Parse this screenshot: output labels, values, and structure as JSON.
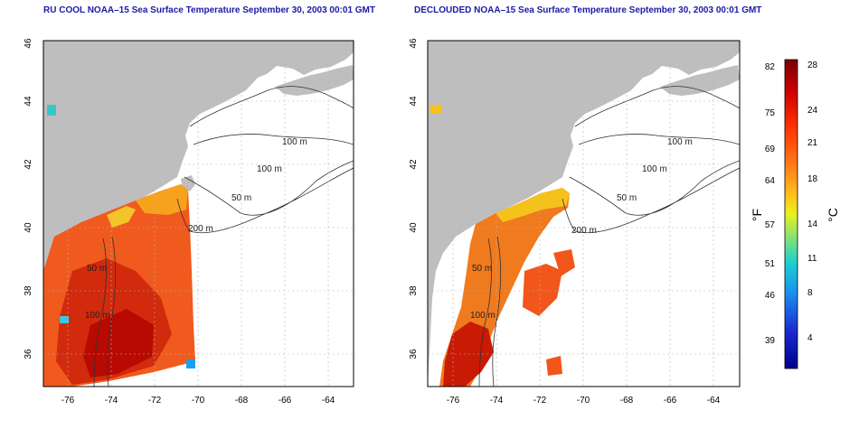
{
  "titles": {
    "left": "RU COOL NOAA–15 Sea Surface Temperature September 30, 2003 00:01 GMT",
    "right": "DECLOUDED NOAA–15 Sea Surface Temperature September 30, 2003 00:01 GMT"
  },
  "map": {
    "lon_ticks": [
      "-76",
      "-74",
      "-72",
      "-70",
      "-68",
      "-66",
      "-64"
    ],
    "lat_ticks": [
      "36",
      "38",
      "40",
      "42",
      "44",
      "46"
    ],
    "contours": {
      "c100a": "100 m",
      "c100b": "100 m",
      "c50": "50 m",
      "c200": "200 m",
      "c50b": "50 m",
      "c100c": "100 m"
    },
    "colors": {
      "land": "#bebebe",
      "ocean": "#ffffff",
      "grid": "#b4b4b4",
      "contour": "#333333"
    }
  },
  "legend": {
    "fahrenheit_unit": "°F",
    "celsius_unit": "°C",
    "fahrenheit_ticks": [
      "82",
      "75",
      "69",
      "64",
      "57",
      "51",
      "46",
      "39"
    ],
    "celsius_ticks": [
      "28",
      "24",
      "21",
      "18",
      "14",
      "11",
      "8",
      "4"
    ],
    "gradient": [
      "#7a0000",
      "#cc0000",
      "#ff3300",
      "#ff7a1a",
      "#ffc21a",
      "#eaf21a",
      "#7fe07a",
      "#1ad0d0",
      "#1a8cf0",
      "#1a2ad0",
      "#00008c"
    ]
  }
}
